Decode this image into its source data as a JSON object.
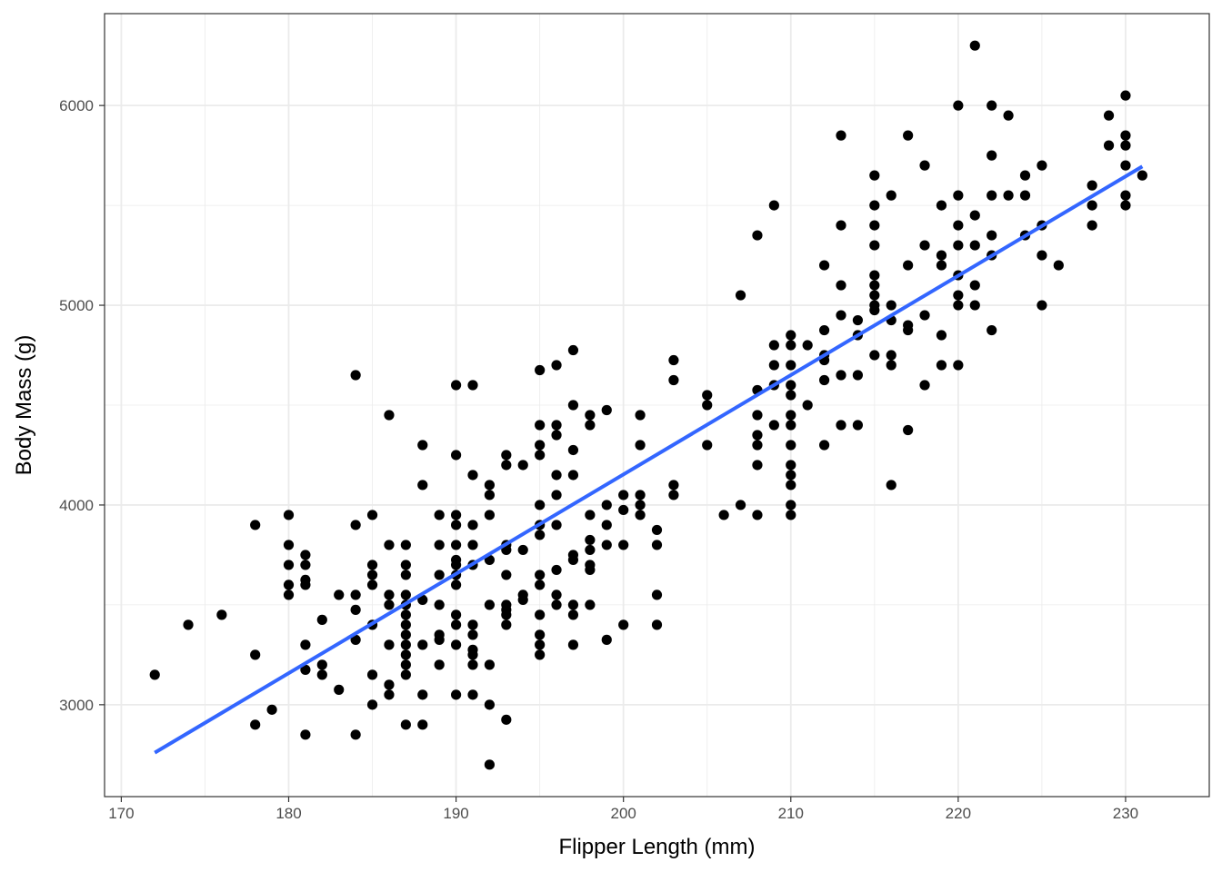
{
  "chart_data": {
    "type": "scatter",
    "xlabel": "Flipper Length (mm)",
    "ylabel": "Body Mass (g)",
    "xlim": [
      169,
      235
    ],
    "ylim": [
      2540,
      6460
    ],
    "x_ticks": [
      170,
      180,
      190,
      200,
      210,
      220,
      230
    ],
    "y_ticks": [
      3000,
      4000,
      5000,
      6000
    ],
    "grid": true,
    "theme": "black-and-white panel border, light gray grid",
    "colors": {
      "points": "#000000",
      "fit_line": "#3366FF",
      "grid": "#EBEBEB",
      "border": "#333333"
    },
    "points": [
      [
        172,
        3150
      ],
      [
        174,
        3400
      ],
      [
        176,
        3450
      ],
      [
        178,
        3900
      ],
      [
        178,
        3250
      ],
      [
        178,
        2900
      ],
      [
        179,
        2975
      ],
      [
        180,
        3950
      ],
      [
        180,
        3800
      ],
      [
        180,
        3700
      ],
      [
        180,
        3600
      ],
      [
        180,
        3550
      ],
      [
        181,
        3750
      ],
      [
        181,
        3700
      ],
      [
        181,
        3625
      ],
      [
        181,
        3600
      ],
      [
        181,
        3300
      ],
      [
        181,
        3175
      ],
      [
        181,
        2850
      ],
      [
        182,
        3425
      ],
      [
        182,
        3200
      ],
      [
        182,
        3150
      ],
      [
        183,
        3550
      ],
      [
        183,
        3075
      ],
      [
        184,
        4650
      ],
      [
        184,
        3900
      ],
      [
        184,
        3550
      ],
      [
        184,
        3475
      ],
      [
        184,
        3325
      ],
      [
        184,
        2850
      ],
      [
        185,
        3950
      ],
      [
        185,
        3700
      ],
      [
        185,
        3650
      ],
      [
        185,
        3600
      ],
      [
        185,
        3400
      ],
      [
        185,
        3150
      ],
      [
        185,
        3000
      ],
      [
        186,
        4450
      ],
      [
        186,
        3800
      ],
      [
        186,
        3550
      ],
      [
        186,
        3500
      ],
      [
        186,
        3300
      ],
      [
        186,
        3100
      ],
      [
        186,
        3050
      ],
      [
        187,
        3800
      ],
      [
        187,
        3700
      ],
      [
        187,
        3650
      ],
      [
        187,
        3550
      ],
      [
        187,
        3500
      ],
      [
        187,
        3450
      ],
      [
        187,
        3400
      ],
      [
        187,
        3350
      ],
      [
        187,
        3300
      ],
      [
        187,
        3250
      ],
      [
        187,
        3200
      ],
      [
        187,
        3150
      ],
      [
        187,
        2900
      ],
      [
        188,
        4300
      ],
      [
        188,
        4100
      ],
      [
        188,
        3525
      ],
      [
        188,
        3300
      ],
      [
        188,
        3050
      ],
      [
        188,
        2900
      ],
      [
        189,
        3950
      ],
      [
        189,
        3800
      ],
      [
        189,
        3650
      ],
      [
        189,
        3500
      ],
      [
        189,
        3350
      ],
      [
        189,
        3325
      ],
      [
        189,
        3200
      ],
      [
        190,
        4600
      ],
      [
        190,
        4250
      ],
      [
        190,
        3950
      ],
      [
        190,
        3900
      ],
      [
        190,
        3800
      ],
      [
        190,
        3725
      ],
      [
        190,
        3700
      ],
      [
        190,
        3650
      ],
      [
        190,
        3600
      ],
      [
        190,
        3450
      ],
      [
        190,
        3400
      ],
      [
        190,
        3300
      ],
      [
        190,
        3050
      ],
      [
        191,
        4600
      ],
      [
        191,
        4150
      ],
      [
        191,
        3900
      ],
      [
        191,
        3800
      ],
      [
        191,
        3700
      ],
      [
        191,
        3400
      ],
      [
        191,
        3350
      ],
      [
        191,
        3275
      ],
      [
        191,
        3250
      ],
      [
        191,
        3200
      ],
      [
        191,
        3050
      ],
      [
        192,
        4100
      ],
      [
        192,
        4050
      ],
      [
        192,
        3950
      ],
      [
        192,
        3725
      ],
      [
        192,
        3500
      ],
      [
        192,
        3200
      ],
      [
        192,
        3000
      ],
      [
        192,
        2700
      ],
      [
        193,
        4250
      ],
      [
        193,
        4200
      ],
      [
        193,
        3800
      ],
      [
        193,
        3775
      ],
      [
        193,
        3650
      ],
      [
        193,
        3500
      ],
      [
        193,
        3475
      ],
      [
        193,
        3450
      ],
      [
        193,
        3400
      ],
      [
        193,
        2925
      ],
      [
        194,
        4200
      ],
      [
        194,
        3775
      ],
      [
        194,
        3550
      ],
      [
        194,
        3525
      ],
      [
        195,
        4675
      ],
      [
        195,
        4400
      ],
      [
        195,
        4300
      ],
      [
        195,
        4250
      ],
      [
        195,
        4000
      ],
      [
        195,
        3900
      ],
      [
        195,
        3850
      ],
      [
        195,
        3650
      ],
      [
        195,
        3600
      ],
      [
        195,
        3450
      ],
      [
        195,
        3350
      ],
      [
        195,
        3300
      ],
      [
        195,
        3250
      ],
      [
        196,
        4700
      ],
      [
        196,
        4400
      ],
      [
        196,
        4350
      ],
      [
        196,
        4150
      ],
      [
        196,
        4050
      ],
      [
        196,
        3900
      ],
      [
        196,
        3675
      ],
      [
        196,
        3550
      ],
      [
        196,
        3500
      ],
      [
        197,
        4775
      ],
      [
        197,
        4500
      ],
      [
        197,
        4275
      ],
      [
        197,
        4150
      ],
      [
        197,
        3750
      ],
      [
        197,
        3725
      ],
      [
        197,
        3500
      ],
      [
        197,
        3450
      ],
      [
        197,
        3300
      ],
      [
        198,
        4450
      ],
      [
        198,
        4400
      ],
      [
        198,
        3950
      ],
      [
        198,
        3825
      ],
      [
        198,
        3775
      ],
      [
        198,
        3700
      ],
      [
        198,
        3675
      ],
      [
        198,
        3500
      ],
      [
        199,
        4475
      ],
      [
        199,
        4000
      ],
      [
        199,
        3900
      ],
      [
        199,
        3800
      ],
      [
        199,
        3325
      ],
      [
        200,
        4050
      ],
      [
        200,
        3975
      ],
      [
        200,
        3400
      ],
      [
        200,
        3800
      ],
      [
        201,
        4450
      ],
      [
        201,
        4300
      ],
      [
        201,
        4050
      ],
      [
        201,
        4000
      ],
      [
        201,
        3950
      ],
      [
        202,
        3875
      ],
      [
        202,
        3800
      ],
      [
        202,
        3550
      ],
      [
        202,
        3400
      ],
      [
        203,
        4725
      ],
      [
        203,
        4625
      ],
      [
        203,
        4100
      ],
      [
        203,
        4050
      ],
      [
        205,
        4550
      ],
      [
        205,
        4500
      ],
      [
        205,
        4300
      ],
      [
        206,
        3950
      ],
      [
        207,
        5050
      ],
      [
        207,
        4000
      ],
      [
        208,
        5350
      ],
      [
        208,
        4575
      ],
      [
        208,
        4450
      ],
      [
        208,
        4350
      ],
      [
        208,
        4300
      ],
      [
        208,
        4200
      ],
      [
        208,
        3950
      ],
      [
        209,
        5500
      ],
      [
        209,
        4800
      ],
      [
        209,
        4700
      ],
      [
        209,
        4600
      ],
      [
        209,
        4400
      ],
      [
        210,
        4850
      ],
      [
        210,
        4800
      ],
      [
        210,
        4700
      ],
      [
        210,
        4600
      ],
      [
        210,
        4550
      ],
      [
        210,
        4450
      ],
      [
        210,
        4400
      ],
      [
        210,
        4300
      ],
      [
        210,
        4200
      ],
      [
        210,
        4150
      ],
      [
        210,
        4100
      ],
      [
        210,
        4000
      ],
      [
        210,
        3950
      ],
      [
        211,
        4800
      ],
      [
        211,
        4500
      ],
      [
        212,
        5200
      ],
      [
        212,
        4875
      ],
      [
        212,
        4750
      ],
      [
        212,
        4725
      ],
      [
        212,
        4625
      ],
      [
        212,
        4300
      ],
      [
        213,
        5850
      ],
      [
        213,
        5400
      ],
      [
        213,
        5100
      ],
      [
        213,
        4950
      ],
      [
        213,
        4650
      ],
      [
        213,
        4400
      ],
      [
        214,
        4925
      ],
      [
        214,
        4850
      ],
      [
        214,
        4650
      ],
      [
        214,
        4400
      ],
      [
        215,
        5650
      ],
      [
        215,
        5500
      ],
      [
        215,
        5400
      ],
      [
        215,
        5300
      ],
      [
        215,
        5150
      ],
      [
        215,
        5100
      ],
      [
        215,
        5050
      ],
      [
        215,
        5000
      ],
      [
        215,
        4975
      ],
      [
        215,
        4750
      ],
      [
        216,
        5550
      ],
      [
        216,
        5000
      ],
      [
        216,
        4925
      ],
      [
        216,
        4750
      ],
      [
        216,
        4700
      ],
      [
        216,
        4100
      ],
      [
        217,
        5850
      ],
      [
        217,
        5200
      ],
      [
        217,
        4900
      ],
      [
        217,
        4875
      ],
      [
        217,
        4375
      ],
      [
        218,
        5700
      ],
      [
        218,
        5300
      ],
      [
        218,
        4950
      ],
      [
        218,
        4600
      ],
      [
        219,
        5500
      ],
      [
        219,
        5250
      ],
      [
        219,
        5200
      ],
      [
        219,
        4850
      ],
      [
        219,
        4700
      ],
      [
        220,
        6000
      ],
      [
        220,
        5550
      ],
      [
        220,
        5400
      ],
      [
        220,
        5300
      ],
      [
        220,
        5150
      ],
      [
        220,
        5050
      ],
      [
        220,
        5000
      ],
      [
        220,
        4700
      ],
      [
        221,
        6300
      ],
      [
        221,
        5450
      ],
      [
        221,
        5300
      ],
      [
        221,
        5100
      ],
      [
        221,
        5000
      ],
      [
        222,
        6000
      ],
      [
        222,
        5750
      ],
      [
        222,
        5550
      ],
      [
        222,
        5350
      ],
      [
        222,
        5250
      ],
      [
        222,
        4875
      ],
      [
        223,
        5950
      ],
      [
        223,
        5550
      ],
      [
        224,
        5650
      ],
      [
        224,
        5550
      ],
      [
        224,
        5350
      ],
      [
        225,
        5700
      ],
      [
        225,
        5400
      ],
      [
        225,
        5250
      ],
      [
        225,
        5000
      ],
      [
        226,
        5200
      ],
      [
        228,
        5600
      ],
      [
        228,
        5500
      ],
      [
        228,
        5400
      ],
      [
        229,
        5950
      ],
      [
        229,
        5800
      ],
      [
        230,
        6050
      ],
      [
        230,
        5850
      ],
      [
        230,
        5800
      ],
      [
        230,
        5700
      ],
      [
        230,
        5550
      ],
      [
        230,
        5500
      ],
      [
        231,
        5650
      ]
    ],
    "fit_line": {
      "x": [
        172,
        231
      ],
      "y": [
        2760,
        5695
      ]
    }
  }
}
